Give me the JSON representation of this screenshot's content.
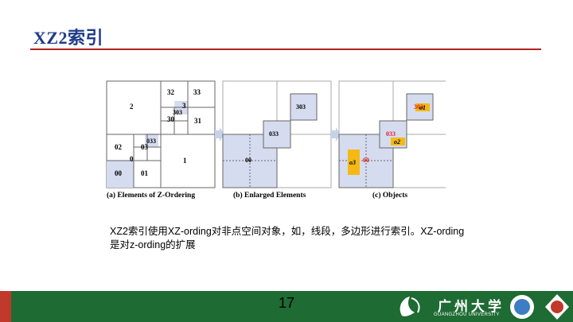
{
  "slide": {
    "title": "XZ2索引",
    "body_text": "XZ2索引使用XZ-ording对非点空间对象，如，线段，多边形进行索引。XZ-ording是对z-ording的扩展",
    "page_number": "17"
  },
  "figure": {
    "panel_a": {
      "caption": "(a) Elements of Z-Ordering",
      "labels": [
        "32",
        "33",
        "3",
        "303",
        "30",
        "31",
        "2",
        "033",
        "02",
        "03",
        "0",
        "1",
        "00",
        "01"
      ]
    },
    "panel_b": {
      "caption": "(b) Enlarged Elements",
      "labels": [
        "303",
        "033",
        "00"
      ]
    },
    "panel_c": {
      "caption": "(c) Objects",
      "labels": [
        "303",
        "o1",
        "033",
        "o2",
        "00",
        "o3"
      ]
    }
  },
  "footer": {
    "university_name": "广州大学",
    "university_name_en": "GUANGZHOU UNIVERSITY"
  },
  "colors": {
    "title": "#1f3c88",
    "rule": "#b22222",
    "footer_green": "#1e6b33",
    "footer_red": "#c0392b",
    "cell_fill": "#d6dcef",
    "object_fill": "#f5b915",
    "highlight_label": "#e0202a"
  }
}
